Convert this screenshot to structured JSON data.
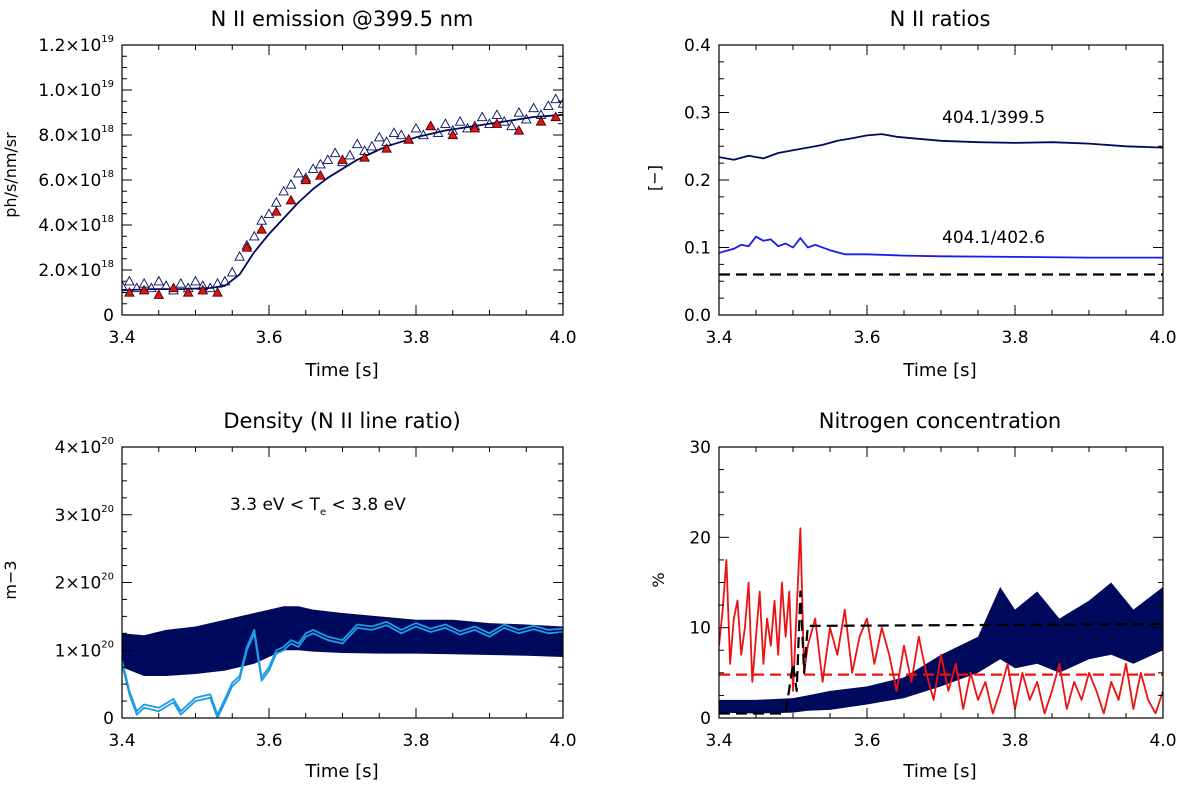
{
  "charts": {
    "emission": {
      "title": "N II emission @399.5 nm",
      "xlabel": "Time [s]",
      "ylabel": "ph/s/nm/sr"
    },
    "ratios": {
      "title": "N II ratios",
      "xlabel": "Time [s]",
      "ylabel": "[−]",
      "annotation_a": "404.1/399.5",
      "annotation_b": "404.1/402.6"
    },
    "density": {
      "title": "Density (N II line ratio)",
      "xlabel": "Time [s]",
      "ylabel": "m−3",
      "annotation_pre": "3.3 eV < T",
      "annotation_sub": "e",
      "annotation_post": " < 3.8 eV"
    },
    "nitrogen": {
      "title": "Nitrogen concentration",
      "xlabel": "Time [s]",
      "ylabel": "%"
    }
  },
  "chart_data": [
    {
      "id": "emission",
      "type": "scatter",
      "title": "N II emission @399.5 nm",
      "xlabel": "Time [s]",
      "ylabel": "ph/s/nm/sr",
      "xlim": [
        3.4,
        4.0
      ],
      "ylim": [
        0,
        1.2e+19
      ],
      "xticks": [
        3.4,
        3.6,
        3.8,
        4.0
      ],
      "xtick_labels": [
        "3.4",
        "3.6",
        "3.8",
        "4.0"
      ],
      "yticks": [
        0,
        2e+18,
        4e+18,
        6e+18,
        8e+18,
        1e+19,
        1.2e+19
      ],
      "ytick_labels": [
        {
          "m": "0",
          "e": ""
        },
        {
          "m": "2.0×10",
          "e": "18"
        },
        {
          "m": "4.0×10",
          "e": "18"
        },
        {
          "m": "6.0×10",
          "e": "18"
        },
        {
          "m": "8.0×10",
          "e": "18"
        },
        {
          "m": "1.0×10",
          "e": "19"
        },
        {
          "m": "1.2×10",
          "e": "19"
        }
      ],
      "series": [
        {
          "style": "line",
          "color": "#000a5c",
          "x": [
            3.4,
            3.44,
            3.48,
            3.52,
            3.54,
            3.56,
            3.58,
            3.6,
            3.62,
            3.64,
            3.66,
            3.68,
            3.7,
            3.72,
            3.74,
            3.76,
            3.78,
            3.8,
            3.84,
            3.88,
            3.92,
            3.96,
            4.0
          ],
          "y": [
            1.1e+18,
            1.15e+18,
            1.15e+18,
            1.2e+18,
            1.3e+18,
            1.8e+18,
            2.8e+18,
            3.6e+18,
            4.3e+18,
            5e+18,
            5.6e+18,
            6.1e+18,
            6.5e+18,
            6.9e+18,
            7.2e+18,
            7.5e+18,
            7.7e+18,
            7.9e+18,
            8.2e+18,
            8.4e+18,
            8.6e+18,
            8.8e+18,
            8.9e+18
          ]
        },
        {
          "style": "open-triangle",
          "color": "#000a5c",
          "x": [
            3.4,
            3.41,
            3.42,
            3.43,
            3.44,
            3.45,
            3.46,
            3.47,
            3.48,
            3.49,
            3.5,
            3.51,
            3.52,
            3.53,
            3.54,
            3.55,
            3.56,
            3.57,
            3.58,
            3.59,
            3.6,
            3.61,
            3.62,
            3.63,
            3.64,
            3.65,
            3.66,
            3.67,
            3.68,
            3.69,
            3.7,
            3.71,
            3.72,
            3.73,
            3.74,
            3.75,
            3.76,
            3.77,
            3.78,
            3.79,
            3.8,
            3.81,
            3.82,
            3.83,
            3.84,
            3.85,
            3.86,
            3.87,
            3.88,
            3.89,
            3.9,
            3.91,
            3.92,
            3.93,
            3.94,
            3.95,
            3.96,
            3.97,
            3.98,
            3.99,
            4.0
          ],
          "y": [
            1.3e+18,
            1.5e+18,
            1.2e+18,
            1.4e+18,
            1.2e+18,
            1.5e+18,
            1.3e+18,
            1.1e+18,
            1.4e+18,
            1.2e+18,
            1.5e+18,
            1.3e+18,
            1.2e+18,
            1.4e+18,
            1.5e+18,
            1.9e+18,
            2.6e+18,
            3.1e+18,
            3.5e+18,
            4.2e+18,
            4.5e+18,
            5e+18,
            5.5e+18,
            5.8e+18,
            6.3e+18,
            6.1e+18,
            6.5e+18,
            6.7e+18,
            6.9e+18,
            7.2e+18,
            6.8e+18,
            7.1e+18,
            7.6e+18,
            7.3e+18,
            7.5e+18,
            7.9e+18,
            7.7e+18,
            8.1e+18,
            8e+18,
            7.8e+18,
            8.3e+18,
            8e+18,
            8.4e+18,
            8.1e+18,
            8.5e+18,
            8.2e+18,
            8.6e+18,
            8.3e+18,
            8.4e+18,
            8.8e+18,
            8.5e+18,
            8.9e+18,
            8.6e+18,
            8.4e+18,
            9e+18,
            8.7e+18,
            9.2e+18,
            8.9e+18,
            9.3e+18,
            9.6e+18,
            9.4e+18
          ]
        },
        {
          "style": "filled-triangle",
          "color": "#e01414",
          "x": [
            3.41,
            3.43,
            3.45,
            3.47,
            3.49,
            3.51,
            3.53,
            3.57,
            3.59,
            3.61,
            3.63,
            3.65,
            3.67,
            3.7,
            3.73,
            3.76,
            3.79,
            3.82,
            3.85,
            3.88,
            3.91,
            3.94,
            3.97,
            3.99
          ],
          "y": [
            1e+18,
            1.1e+18,
            9e+17,
            1.2e+18,
            1e+18,
            1.1e+18,
            1e+18,
            3e+18,
            3.8e+18,
            4.6e+18,
            5.1e+18,
            6e+18,
            6.2e+18,
            6.9e+18,
            7e+18,
            7.4e+18,
            7.8e+18,
            8.4e+18,
            8e+18,
            8.3e+18,
            8.5e+18,
            8.2e+18,
            8.6e+18,
            8.8e+18
          ]
        }
      ]
    },
    {
      "id": "ratios",
      "type": "line",
      "title": "N II ratios",
      "xlabel": "Time [s]",
      "ylabel": "[−]",
      "xlim": [
        3.4,
        4.0
      ],
      "ylim": [
        0,
        0.4
      ],
      "xticks": [
        3.4,
        3.6,
        3.8,
        4.0
      ],
      "xtick_labels": [
        "3.4",
        "3.6",
        "3.8",
        "4.0"
      ],
      "yticks": [
        0,
        0.1,
        0.2,
        0.3,
        0.4
      ],
      "ytick_labels": [
        {
          "m": "0.0",
          "e": ""
        },
        {
          "m": "0.1",
          "e": ""
        },
        {
          "m": "0.2",
          "e": ""
        },
        {
          "m": "0.3",
          "e": ""
        },
        {
          "m": "0.4",
          "e": ""
        }
      ],
      "annotations": [
        {
          "text": "404.1/399.5",
          "x": 3.7,
          "y": 0.285
        },
        {
          "text": "404.1/402.6",
          "x": 3.7,
          "y": 0.112
        }
      ],
      "series": [
        {
          "name": "404.1/399.5",
          "style": "line",
          "color": "#000a5c",
          "x": [
            3.4,
            3.42,
            3.44,
            3.46,
            3.48,
            3.5,
            3.52,
            3.54,
            3.56,
            3.58,
            3.6,
            3.62,
            3.64,
            3.66,
            3.7,
            3.75,
            3.8,
            3.85,
            3.9,
            3.95,
            4.0
          ],
          "y": [
            0.234,
            0.23,
            0.236,
            0.232,
            0.24,
            0.244,
            0.248,
            0.252,
            0.258,
            0.262,
            0.266,
            0.268,
            0.264,
            0.262,
            0.258,
            0.256,
            0.255,
            0.256,
            0.254,
            0.25,
            0.248
          ]
        },
        {
          "name": "404.1/402.6",
          "style": "line",
          "color": "#1a1aee",
          "x": [
            3.4,
            3.42,
            3.43,
            3.44,
            3.45,
            3.46,
            3.47,
            3.48,
            3.49,
            3.5,
            3.51,
            3.52,
            3.53,
            3.55,
            3.57,
            3.6,
            3.65,
            3.7,
            3.8,
            3.9,
            4.0
          ],
          "y": [
            0.092,
            0.098,
            0.104,
            0.102,
            0.116,
            0.11,
            0.112,
            0.102,
            0.106,
            0.1,
            0.114,
            0.1,
            0.104,
            0.096,
            0.09,
            0.09,
            0.088,
            0.087,
            0.086,
            0.085,
            0.085
          ]
        },
        {
          "name": "",
          "style": "dashed",
          "color": "#000000",
          "x": [
            3.4,
            4.0
          ],
          "y": [
            0.06,
            0.06
          ]
        }
      ]
    },
    {
      "id": "density",
      "type": "area",
      "title": "Density (N II line ratio)",
      "xlabel": "Time [s]",
      "ylabel": "m−3",
      "xlim": [
        3.4,
        4.0
      ],
      "ylim": [
        0,
        4e+20
      ],
      "xticks": [
        3.4,
        3.6,
        3.8,
        4.0
      ],
      "xtick_labels": [
        "3.4",
        "3.6",
        "3.8",
        "4.0"
      ],
      "yticks": [
        0,
        1e+20,
        2e+20,
        3e+20,
        4e+20
      ],
      "ytick_labels": [
        {
          "m": "0",
          "e": ""
        },
        {
          "m": "1×10",
          "e": "20"
        },
        {
          "m": "2×10",
          "e": "20"
        },
        {
          "m": "3×10",
          "e": "20"
        },
        {
          "m": "4×10",
          "e": "20"
        }
      ],
      "annotation": "3.3 eV < Te < 3.8 eV",
      "band": {
        "color": "#000a5c",
        "x": [
          3.4,
          3.43,
          3.46,
          3.5,
          3.54,
          3.58,
          3.6,
          3.62,
          3.64,
          3.66,
          3.7,
          3.75,
          3.8,
          3.85,
          3.9,
          3.95,
          4.0
        ],
        "upper": [
          1.25e+20,
          1.22e+20,
          1.3e+20,
          1.35e+20,
          1.45e+20,
          1.55e+20,
          1.6e+20,
          1.65e+20,
          1.65e+20,
          1.6e+20,
          1.55e+20,
          1.5e+20,
          1.45e+20,
          1.45e+20,
          1.4e+20,
          1.38e+20,
          1.35e+20
        ],
        "lower": [
          7.5e+19,
          6.2e+19,
          6.2e+19,
          6.5e+19,
          7e+19,
          8e+19,
          9e+19,
          1e+20,
          1e+20,
          9.8e+19,
          9.6e+19,
          9.5e+19,
          9.5e+19,
          9.4e+19,
          9.3e+19,
          9.2e+19,
          9e+19
        ]
      },
      "series": [
        {
          "style": "line",
          "color": "#1e9be6",
          "x": [
            3.4,
            3.41,
            3.42,
            3.43,
            3.45,
            3.47,
            3.48,
            3.5,
            3.52,
            3.53,
            3.54,
            3.55,
            3.56,
            3.57,
            3.58,
            3.59,
            3.6,
            3.61,
            3.62,
            3.63,
            3.64,
            3.65,
            3.66,
            3.68,
            3.7,
            3.72,
            3.74,
            3.76,
            3.78,
            3.8,
            3.82,
            3.84,
            3.86,
            3.88,
            3.9,
            3.92,
            3.94,
            3.96,
            3.98,
            4.0
          ],
          "y": [
            8.5e+19,
            4e+19,
            1e+19,
            2e+19,
            1.5e+19,
            2.8e+19,
            1e+19,
            3e+19,
            3.5e+19,
            5e+18,
            2.8e+19,
            5.2e+19,
            6.2e+19,
            1.05e+20,
            1.3e+20,
            6e+19,
            7.5e+19,
            1e+20,
            1.05e+20,
            1.15e+20,
            1.1e+20,
            1.25e+20,
            1.3e+20,
            1.2e+20,
            1.15e+20,
            1.38e+20,
            1.35e+20,
            1.42e+20,
            1.3e+20,
            1.4e+20,
            1.32e+20,
            1.38e+20,
            1.28e+20,
            1.35e+20,
            1.25e+20,
            1.38e+20,
            1.3e+20,
            1.36e+20,
            1.3e+20,
            1.32e+20
          ]
        },
        {
          "style": "line",
          "color": "#1e9be6",
          "x": [
            3.4,
            3.41,
            3.42,
            3.43,
            3.45,
            3.47,
            3.48,
            3.5,
            3.52,
            3.53,
            3.54,
            3.55,
            3.56,
            3.57,
            3.58,
            3.59,
            3.6,
            3.61,
            3.62,
            3.63,
            3.64,
            3.65,
            3.66,
            3.68,
            3.7,
            3.72,
            3.74,
            3.76,
            3.78,
            3.8,
            3.82,
            3.84,
            3.86,
            3.88,
            3.9,
            3.92,
            3.94,
            3.96,
            3.98,
            4.0
          ],
          "y": [
            8e+19,
            3.5e+19,
            5e+18,
            1.5e+19,
            1e+19,
            2.3e+19,
            5e+18,
            2.5e+19,
            3e+19,
            0.0,
            2.3e+19,
            4.7e+19,
            5.7e+19,
            1e+20,
            1.25e+20,
            5.5e+19,
            7e+19,
            9.5e+19,
            1e+20,
            1.1e+20,
            1.05e+20,
            1.2e+20,
            1.25e+20,
            1.15e+20,
            1.1e+20,
            1.33e+20,
            1.3e+20,
            1.37e+20,
            1.25e+20,
            1.35e+20,
            1.27e+20,
            1.33e+20,
            1.23e+20,
            1.3e+20,
            1.2e+20,
            1.33e+20,
            1.25e+20,
            1.31e+20,
            1.25e+20,
            1.27e+20
          ]
        }
      ]
    },
    {
      "id": "nitrogen",
      "type": "line",
      "title": "Nitrogen concentration",
      "xlabel": "Time [s]",
      "ylabel": "%",
      "xlim": [
        3.4,
        4.0
      ],
      "ylim": [
        0,
        30
      ],
      "xticks": [
        3.4,
        3.6,
        3.8,
        4.0
      ],
      "xtick_labels": [
        "3.4",
        "3.6",
        "3.8",
        "4.0"
      ],
      "yticks": [
        0,
        10,
        20,
        30
      ],
      "ytick_labels": [
        {
          "m": "0",
          "e": ""
        },
        {
          "m": "10",
          "e": ""
        },
        {
          "m": "20",
          "e": ""
        },
        {
          "m": "30",
          "e": ""
        }
      ],
      "band": {
        "color": "#000a5c",
        "x": [
          3.4,
          3.45,
          3.5,
          3.52,
          3.55,
          3.6,
          3.65,
          3.7,
          3.75,
          3.78,
          3.8,
          3.83,
          3.86,
          3.9,
          3.93,
          3.96,
          4.0
        ],
        "upper": [
          2.0,
          2.0,
          2.2,
          2.5,
          3.0,
          3.5,
          4.5,
          7.0,
          9.0,
          14.5,
          12.0,
          14.0,
          11.0,
          13.0,
          15.0,
          12.0,
          14.5
        ],
        "lower": [
          0.6,
          0.5,
          0.6,
          0.8,
          0.9,
          1.5,
          2.2,
          3.5,
          5.0,
          6.5,
          5.5,
          6.0,
          5.0,
          6.5,
          7.0,
          6.0,
          7.5
        ]
      },
      "series": [
        {
          "style": "line",
          "color": "#ee1111",
          "x": [
            3.4,
            3.405,
            3.41,
            3.415,
            3.42,
            3.425,
            3.43,
            3.435,
            3.44,
            3.445,
            3.45,
            3.455,
            3.46,
            3.465,
            3.47,
            3.475,
            3.48,
            3.485,
            3.49,
            3.495,
            3.5,
            3.505,
            3.51,
            3.515,
            3.52,
            3.53,
            3.54,
            3.55,
            3.56,
            3.57,
            3.58,
            3.59,
            3.6,
            3.61,
            3.62,
            3.63,
            3.64,
            3.65,
            3.66,
            3.67,
            3.68,
            3.69,
            3.7,
            3.71,
            3.72,
            3.73,
            3.74,
            3.75,
            3.76,
            3.77,
            3.78,
            3.79,
            3.8,
            3.81,
            3.82,
            3.83,
            3.84,
            3.85,
            3.86,
            3.87,
            3.88,
            3.89,
            3.9,
            3.91,
            3.92,
            3.93,
            3.94,
            3.95,
            3.96,
            3.97,
            3.98,
            3.99,
            4.0
          ],
          "y": [
            8,
            12,
            17.5,
            6,
            11,
            13,
            7,
            10,
            15,
            4,
            9,
            14,
            6,
            11,
            8,
            13,
            7,
            15,
            9,
            14,
            3,
            12,
            21,
            5,
            8,
            11,
            4,
            10,
            7,
            12,
            5,
            9,
            11,
            6,
            10,
            7,
            3,
            8,
            4,
            9,
            5,
            2,
            7,
            3,
            6,
            1,
            5,
            2,
            4,
            0.5,
            3,
            6,
            1,
            5,
            2,
            4,
            0.5,
            3,
            6,
            1,
            4,
            2,
            5,
            3,
            0.5,
            4,
            2,
            6,
            1,
            5,
            2,
            0.5,
            3
          ]
        },
        {
          "style": "dashed",
          "color": "#ee1111",
          "x": [
            3.4,
            4.0
          ],
          "y": [
            4.8,
            4.8
          ]
        },
        {
          "style": "dashed",
          "color": "#000000",
          "x": [
            3.4,
            3.49,
            3.5,
            3.505,
            3.51,
            3.515,
            3.52,
            4.0
          ],
          "y": [
            0.5,
            0.5,
            6,
            3,
            14,
            5,
            10.2,
            10.4
          ]
        }
      ]
    }
  ]
}
